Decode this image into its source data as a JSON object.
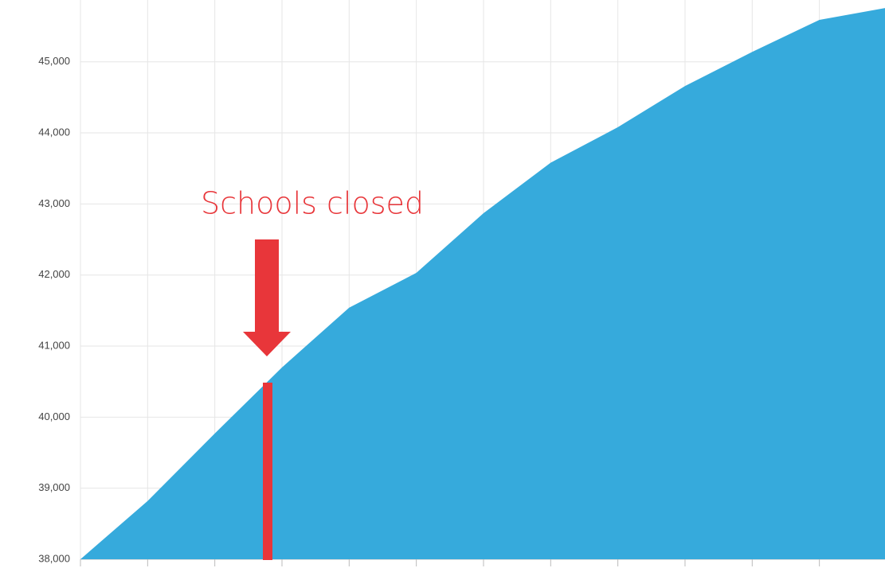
{
  "chart_data": {
    "type": "area",
    "annotation": "Schools closed",
    "categories": [
      null,
      null,
      null,
      null,
      null,
      null,
      null,
      null,
      null,
      null,
      null,
      null,
      null
    ],
    "values": [
      38000,
      38820,
      39770,
      40700,
      41540,
      42030,
      42870,
      43580,
      44080,
      44660,
      45140,
      45590,
      45760
    ],
    "color": "#36aadc",
    "ylim": [
      38000,
      45870
    ],
    "yticks": [
      {
        "value": 38000,
        "label": "38,000"
      },
      {
        "value": 39000,
        "label": "39,000"
      },
      {
        "value": 40000,
        "label": "40,000"
      },
      {
        "value": 41000,
        "label": "41,000"
      },
      {
        "value": 42000,
        "label": "42,000"
      },
      {
        "value": 43000,
        "label": "43,000"
      },
      {
        "value": 44000,
        "label": "44,000"
      },
      {
        "value": 45000,
        "label": "45,000"
      }
    ],
    "grid": true
  }
}
